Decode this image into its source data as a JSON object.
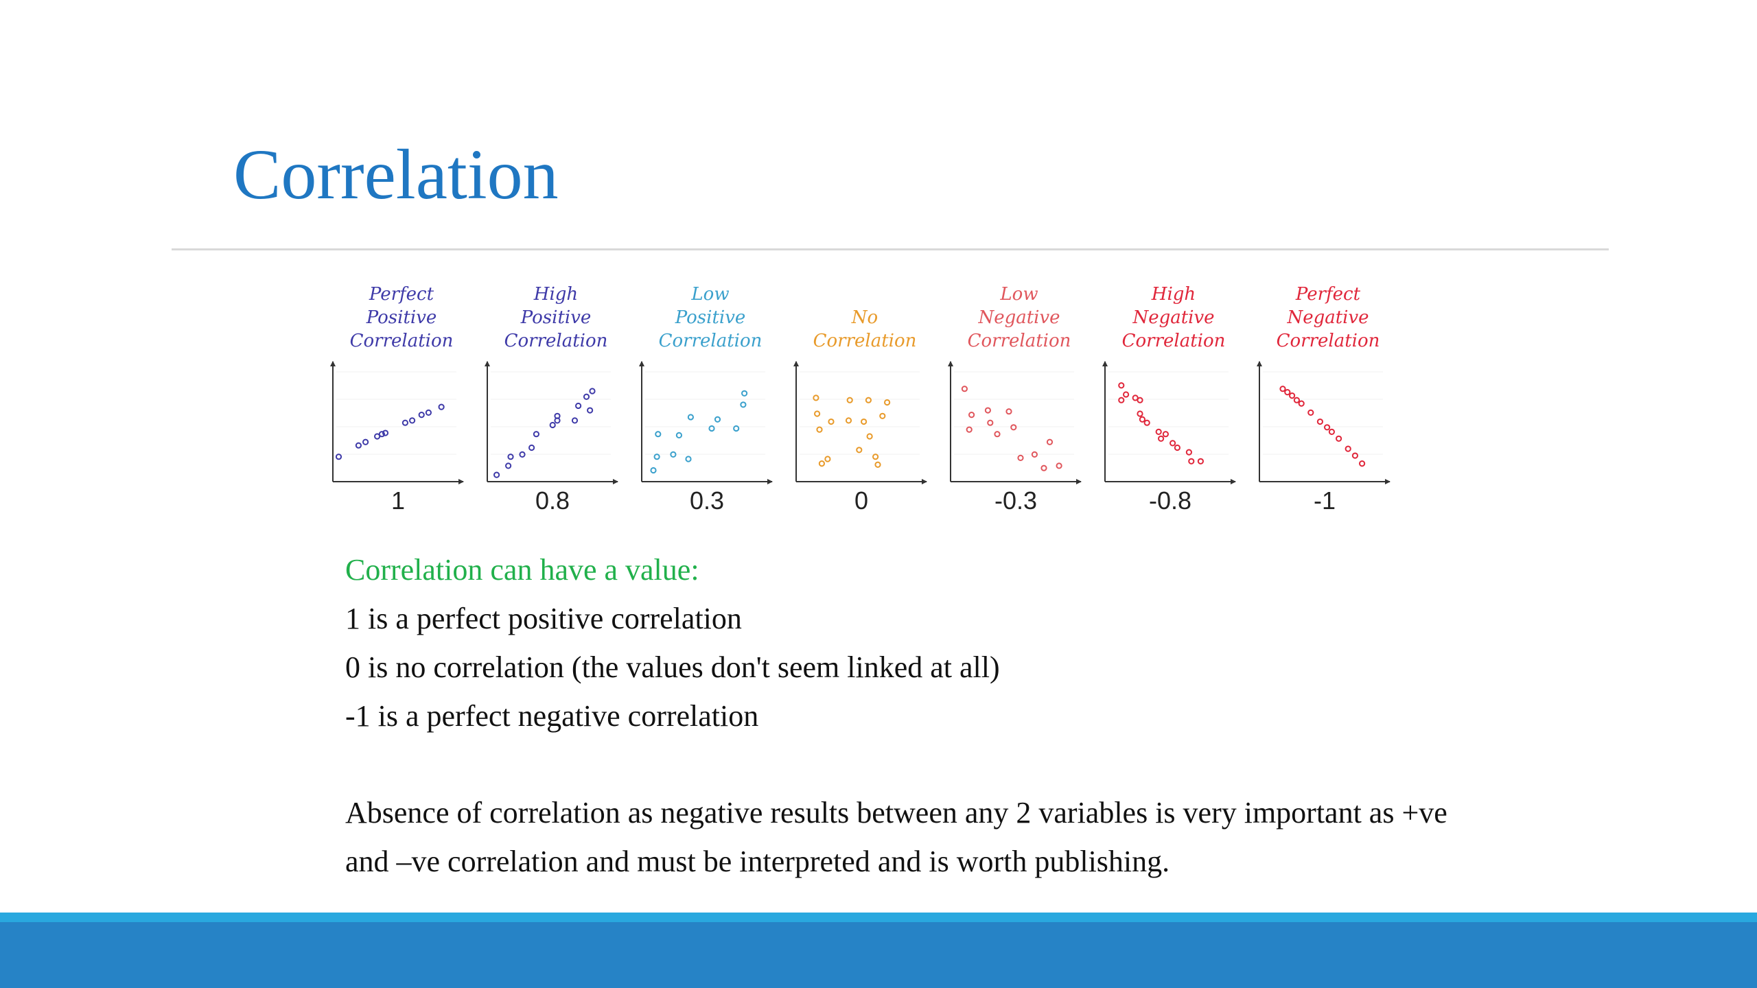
{
  "slide": {
    "title": "Correlation"
  },
  "chart_data": {
    "type": "scatter",
    "panels": [
      {
        "caption": [
          "Perfect",
          "Positive",
          "Correlation"
        ],
        "r_label": "1",
        "color": "#3e3aa8",
        "points": [
          [
            0.05,
            0.22
          ],
          [
            0.22,
            0.32
          ],
          [
            0.28,
            0.35
          ],
          [
            0.38,
            0.4
          ],
          [
            0.42,
            0.42
          ],
          [
            0.45,
            0.43
          ],
          [
            0.62,
            0.52
          ],
          [
            0.68,
            0.54
          ],
          [
            0.76,
            0.59
          ],
          [
            0.82,
            0.61
          ],
          [
            0.93,
            0.66
          ]
        ]
      },
      {
        "caption": [
          "High",
          "Positive",
          "Correlation"
        ],
        "r_label": "0.8",
        "color": "#3e3aa8",
        "points": [
          [
            0.08,
            0.06
          ],
          [
            0.18,
            0.14
          ],
          [
            0.2,
            0.22
          ],
          [
            0.3,
            0.24
          ],
          [
            0.38,
            0.3
          ],
          [
            0.42,
            0.42
          ],
          [
            0.56,
            0.5
          ],
          [
            0.6,
            0.54
          ],
          [
            0.6,
            0.58
          ],
          [
            0.75,
            0.54
          ],
          [
            0.78,
            0.67
          ],
          [
            0.85,
            0.75
          ],
          [
            0.88,
            0.63
          ],
          [
            0.9,
            0.8
          ]
        ]
      },
      {
        "caption": [
          "Low",
          "Positive",
          "Correlation"
        ],
        "r_label": "0.3",
        "color": "#3aa0cc",
        "points": [
          [
            0.1,
            0.1
          ],
          [
            0.13,
            0.22
          ],
          [
            0.14,
            0.42
          ],
          [
            0.27,
            0.24
          ],
          [
            0.32,
            0.41
          ],
          [
            0.4,
            0.2
          ],
          [
            0.42,
            0.57
          ],
          [
            0.6,
            0.47
          ],
          [
            0.65,
            0.55
          ],
          [
            0.81,
            0.47
          ],
          [
            0.87,
            0.68
          ],
          [
            0.88,
            0.78
          ]
        ]
      },
      {
        "caption": [
          "No",
          "Correlation"
        ],
        "r_label": "0",
        "color": "#e89a2a",
        "points": [
          [
            0.17,
            0.74
          ],
          [
            0.18,
            0.6
          ],
          [
            0.2,
            0.46
          ],
          [
            0.22,
            0.16
          ],
          [
            0.27,
            0.2
          ],
          [
            0.3,
            0.53
          ],
          [
            0.45,
            0.54
          ],
          [
            0.46,
            0.72
          ],
          [
            0.54,
            0.28
          ],
          [
            0.58,
            0.53
          ],
          [
            0.62,
            0.72
          ],
          [
            0.63,
            0.4
          ],
          [
            0.68,
            0.22
          ],
          [
            0.7,
            0.15
          ],
          [
            0.74,
            0.58
          ],
          [
            0.78,
            0.7
          ]
        ]
      },
      {
        "caption": [
          "Low",
          "Negative",
          "Correlation"
        ],
        "r_label": "-0.3",
        "color": "#e0565c",
        "points": [
          [
            0.12,
            0.82
          ],
          [
            0.16,
            0.46
          ],
          [
            0.18,
            0.59
          ],
          [
            0.32,
            0.63
          ],
          [
            0.34,
            0.52
          ],
          [
            0.4,
            0.42
          ],
          [
            0.5,
            0.62
          ],
          [
            0.54,
            0.48
          ],
          [
            0.6,
            0.21
          ],
          [
            0.72,
            0.24
          ],
          [
            0.8,
            0.12
          ],
          [
            0.85,
            0.35
          ],
          [
            0.93,
            0.14
          ]
        ]
      },
      {
        "caption": [
          "High",
          "Negative",
          "Correlation"
        ],
        "r_label": "-0.8",
        "color": "#e0263a",
        "points": [
          [
            0.14,
            0.85
          ],
          [
            0.14,
            0.72
          ],
          [
            0.18,
            0.77
          ],
          [
            0.26,
            0.74
          ],
          [
            0.3,
            0.72
          ],
          [
            0.3,
            0.6
          ],
          [
            0.32,
            0.55
          ],
          [
            0.36,
            0.52
          ],
          [
            0.46,
            0.44
          ],
          [
            0.48,
            0.38
          ],
          [
            0.52,
            0.42
          ],
          [
            0.58,
            0.34
          ],
          [
            0.62,
            0.3
          ],
          [
            0.72,
            0.26
          ],
          [
            0.74,
            0.18
          ],
          [
            0.82,
            0.18
          ]
        ]
      },
      {
        "caption": [
          "Perfect",
          "Negative",
          "Correlation"
        ],
        "r_label": "-1",
        "color": "#e0263a",
        "points": [
          [
            0.2,
            0.82
          ],
          [
            0.24,
            0.79
          ],
          [
            0.28,
            0.76
          ],
          [
            0.32,
            0.72
          ],
          [
            0.36,
            0.69
          ],
          [
            0.44,
            0.61
          ],
          [
            0.52,
            0.53
          ],
          [
            0.58,
            0.48
          ],
          [
            0.62,
            0.44
          ],
          [
            0.68,
            0.38
          ],
          [
            0.76,
            0.29
          ],
          [
            0.82,
            0.23
          ],
          [
            0.88,
            0.16
          ]
        ]
      }
    ]
  },
  "text": {
    "lead": "Correlation can have a value:",
    "lines": [
      "1 is a perfect positive correlation",
      "0 is no correlation (the values don't seem linked at all)",
      "-1 is a perfect negative correlation"
    ],
    "note_line1": "Absence of correlation as negative results between any 2 variables is very important as +ve",
    "note_line2": "and –ve correlation and must be interpreted and is worth publishing."
  }
}
